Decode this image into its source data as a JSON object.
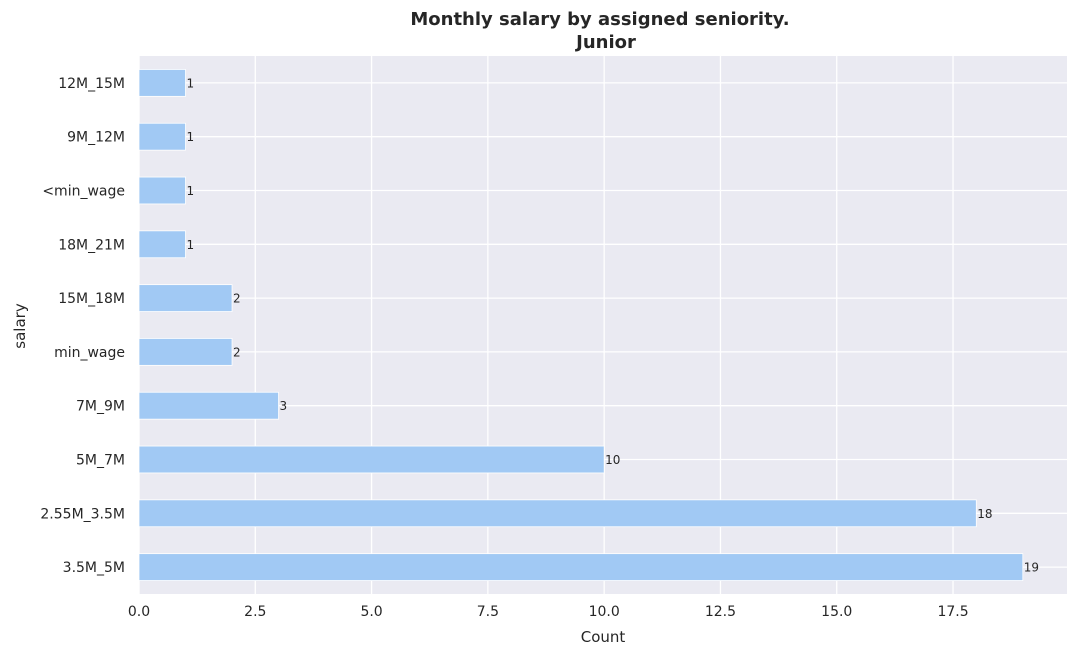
{
  "chart_data": {
    "type": "bar",
    "orientation": "horizontal",
    "title": "Monthly salary by assigned seniority.",
    "subtitle": "Junior",
    "xlabel": "Count",
    "ylabel": "salary",
    "categories": [
      "3.5M_5M",
      "2.55M_3.5M",
      "5M_7M",
      "7M_9M",
      "min_wage",
      "15M_18M",
      "18M_21M",
      "<min_wage",
      "9M_12M",
      "12M_15M"
    ],
    "values": [
      19,
      18,
      10,
      3,
      2,
      2,
      1,
      1,
      1,
      1
    ],
    "data_labels": [
      "19",
      "18",
      "10",
      "3",
      "2",
      "2",
      "1",
      "1",
      "1",
      "1"
    ],
    "xlim": [
      0,
      19.95
    ],
    "xticks": [
      0,
      2.5,
      5,
      7.5,
      10,
      12.5,
      15,
      17.5
    ],
    "xtick_labels": [
      "0.0",
      "2.5",
      "5.0",
      "7.5",
      "10.0",
      "12.5",
      "15.0",
      "17.5"
    ],
    "grid": true,
    "bar_color": "#a1c9f4",
    "background_color": "#eaeaf2",
    "grid_color": "#ffffff"
  }
}
